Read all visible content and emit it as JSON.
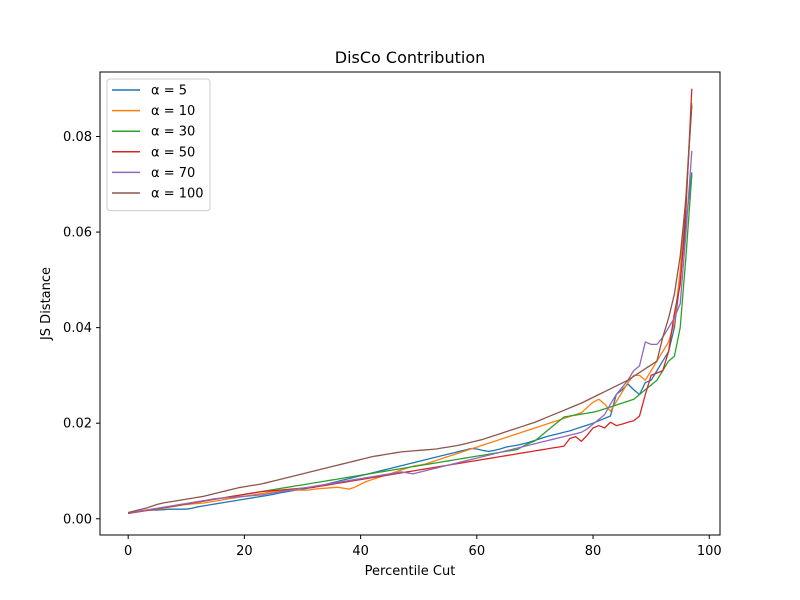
{
  "chart_data": {
    "type": "line",
    "title": "DisCo Contribution",
    "xlabel": "Percentile Cut",
    "ylabel": "JS Distance",
    "xlim": [
      -4.85,
      101.85
    ],
    "ylim": [
      -0.0034,
      0.0935
    ],
    "xticks": [
      0,
      20,
      40,
      60,
      80,
      100
    ],
    "xtick_labels": [
      "0",
      "20",
      "40",
      "60",
      "80",
      "100"
    ],
    "yticks": [
      0.0,
      0.02,
      0.04,
      0.06,
      0.08
    ],
    "ytick_labels": [
      "0.00",
      "0.02",
      "0.04",
      "0.06",
      "0.08"
    ],
    "grid": false,
    "legend_position": "upper-left",
    "x_start": 0,
    "x_step": 1,
    "series": [
      {
        "name": "α = 5",
        "color": "#1f77b4",
        "values": [
          0.0012,
          0.0014,
          0.0016,
          0.0017,
          0.0018,
          0.0018,
          0.0019,
          0.002,
          0.002,
          0.002,
          0.002,
          0.0022,
          0.0025,
          0.0027,
          0.0029,
          0.0031,
          0.0033,
          0.0035,
          0.0037,
          0.0039,
          0.0041,
          0.0043,
          0.0045,
          0.0047,
          0.0049,
          0.0051,
          0.0054,
          0.0056,
          0.0058,
          0.006,
          0.0062,
          0.0064,
          0.0066,
          0.0069,
          0.0072,
          0.0075,
          0.0078,
          0.0081,
          0.0084,
          0.0087,
          0.009,
          0.0093,
          0.0096,
          0.0099,
          0.0102,
          0.0105,
          0.0108,
          0.0111,
          0.0114,
          0.0117,
          0.012,
          0.0123,
          0.0126,
          0.0129,
          0.0132,
          0.0135,
          0.0138,
          0.0141,
          0.0144,
          0.0147,
          0.0146,
          0.0143,
          0.0141,
          0.0143,
          0.0146,
          0.015,
          0.0152,
          0.0154,
          0.0157,
          0.016,
          0.0164,
          0.0168,
          0.0172,
          0.0175,
          0.0178,
          0.0181,
          0.0184,
          0.0188,
          0.0192,
          0.0196,
          0.02,
          0.0205,
          0.021,
          0.0215,
          0.026,
          0.027,
          0.0282,
          0.027,
          0.026,
          0.0285,
          0.029,
          0.031,
          0.033,
          0.035,
          0.04,
          0.05,
          0.062,
          0.0725
        ]
      },
      {
        "name": "α = 10",
        "color": "#ff7f0e",
        "values": [
          0.0011,
          0.0013,
          0.0015,
          0.0017,
          0.0018,
          0.002,
          0.0022,
          0.0024,
          0.0026,
          0.0028,
          0.003,
          0.0031,
          0.0032,
          0.0033,
          0.0035,
          0.0037,
          0.0039,
          0.0041,
          0.0043,
          0.0045,
          0.0047,
          0.0049,
          0.0051,
          0.0053,
          0.0055,
          0.0057,
          0.0058,
          0.0059,
          0.006,
          0.006,
          0.006,
          0.006,
          0.0062,
          0.0063,
          0.0064,
          0.0065,
          0.0066,
          0.0064,
          0.0062,
          0.0066,
          0.0072,
          0.0078,
          0.0082,
          0.0086,
          0.009,
          0.0094,
          0.0098,
          0.0102,
          0.0106,
          0.011,
          0.0112,
          0.0114,
          0.0118,
          0.0122,
          0.0126,
          0.013,
          0.0134,
          0.0138,
          0.0142,
          0.0146,
          0.015,
          0.0154,
          0.0158,
          0.0162,
          0.0166,
          0.017,
          0.0174,
          0.0178,
          0.0182,
          0.0186,
          0.019,
          0.0194,
          0.0198,
          0.0202,
          0.0206,
          0.021,
          0.0214,
          0.0218,
          0.0222,
          0.0233,
          0.0244,
          0.025,
          0.024,
          0.0225,
          0.0245,
          0.0265,
          0.0285,
          0.03,
          0.03,
          0.029,
          0.031,
          0.033,
          0.035,
          0.037,
          0.041,
          0.052,
          0.068,
          0.087
        ]
      },
      {
        "name": "α = 30",
        "color": "#2ca02c",
        "values": [
          0.0012,
          0.0014,
          0.0016,
          0.0018,
          0.0019,
          0.0021,
          0.0023,
          0.0025,
          0.0027,
          0.0029,
          0.0031,
          0.0033,
          0.0035,
          0.0037,
          0.0039,
          0.0041,
          0.0043,
          0.0045,
          0.0047,
          0.0049,
          0.0051,
          0.0053,
          0.0055,
          0.0057,
          0.0059,
          0.0061,
          0.0063,
          0.0065,
          0.0067,
          0.0069,
          0.0071,
          0.0073,
          0.0075,
          0.0077,
          0.0079,
          0.0081,
          0.0083,
          0.0085,
          0.0087,
          0.0089,
          0.0091,
          0.0093,
          0.0095,
          0.0097,
          0.0099,
          0.0101,
          0.0103,
          0.0105,
          0.0107,
          0.0109,
          0.0111,
          0.0113,
          0.0115,
          0.0117,
          0.0119,
          0.0121,
          0.0123,
          0.0125,
          0.0127,
          0.0129,
          0.0131,
          0.0133,
          0.0135,
          0.0137,
          0.0139,
          0.0141,
          0.0143,
          0.0145,
          0.0152,
          0.0158,
          0.0163,
          0.0173,
          0.0183,
          0.0193,
          0.0203,
          0.0213,
          0.0215,
          0.0217,
          0.0219,
          0.0221,
          0.0223,
          0.0226,
          0.023,
          0.0234,
          0.0238,
          0.0242,
          0.0246,
          0.025,
          0.026,
          0.027,
          0.028,
          0.029,
          0.031,
          0.033,
          0.034,
          0.04,
          0.055,
          0.072
        ]
      },
      {
        "name": "α = 50",
        "color": "#d62728",
        "values": [
          0.0011,
          0.0013,
          0.0015,
          0.0017,
          0.0019,
          0.0021,
          0.0023,
          0.0025,
          0.0027,
          0.0029,
          0.0031,
          0.0033,
          0.0035,
          0.0037,
          0.0039,
          0.0041,
          0.0043,
          0.0045,
          0.0047,
          0.0049,
          0.0051,
          0.0053,
          0.0055,
          0.0057,
          0.0058,
          0.0059,
          0.006,
          0.0061,
          0.0062,
          0.0063,
          0.0064,
          0.0065,
          0.0066,
          0.0068,
          0.007,
          0.0072,
          0.0074,
          0.0076,
          0.0078,
          0.008,
          0.0082,
          0.0084,
          0.0086,
          0.0088,
          0.009,
          0.0092,
          0.0094,
          0.0096,
          0.0098,
          0.01,
          0.0102,
          0.0104,
          0.0106,
          0.0108,
          0.011,
          0.0112,
          0.0114,
          0.0116,
          0.0118,
          0.012,
          0.0122,
          0.0124,
          0.0126,
          0.0128,
          0.013,
          0.0132,
          0.0134,
          0.0136,
          0.0138,
          0.014,
          0.0142,
          0.0144,
          0.0146,
          0.0148,
          0.015,
          0.0152,
          0.0168,
          0.0172,
          0.0162,
          0.0175,
          0.019,
          0.0195,
          0.019,
          0.0202,
          0.0195,
          0.0198,
          0.0202,
          0.0205,
          0.0215,
          0.026,
          0.03,
          0.0305,
          0.031,
          0.035,
          0.043,
          0.049,
          0.065,
          0.09
        ]
      },
      {
        "name": "α = 70",
        "color": "#9467bd",
        "values": [
          0.0012,
          0.0014,
          0.0016,
          0.0018,
          0.002,
          0.0022,
          0.0024,
          0.0026,
          0.0028,
          0.003,
          0.0032,
          0.0034,
          0.0036,
          0.0038,
          0.004,
          0.0042,
          0.0043,
          0.0044,
          0.0045,
          0.0046,
          0.0047,
          0.0048,
          0.0049,
          0.005,
          0.0052,
          0.0054,
          0.0056,
          0.0058,
          0.006,
          0.0062,
          0.0064,
          0.0066,
          0.0068,
          0.007,
          0.0072,
          0.0074,
          0.0076,
          0.0078,
          0.008,
          0.0082,
          0.0084,
          0.0086,
          0.0088,
          0.009,
          0.0092,
          0.0094,
          0.0096,
          0.0098,
          0.0096,
          0.0094,
          0.0097,
          0.01,
          0.0103,
          0.0106,
          0.0109,
          0.0112,
          0.0115,
          0.0118,
          0.0121,
          0.0124,
          0.0127,
          0.013,
          0.0133,
          0.0136,
          0.0139,
          0.0142,
          0.0145,
          0.0148,
          0.0151,
          0.0154,
          0.0157,
          0.016,
          0.0163,
          0.0166,
          0.0169,
          0.0172,
          0.0175,
          0.0178,
          0.0181,
          0.0188,
          0.0198,
          0.0208,
          0.0218,
          0.024,
          0.026,
          0.0275,
          0.029,
          0.031,
          0.032,
          0.037,
          0.0365,
          0.0365,
          0.038,
          0.04,
          0.042,
          0.045,
          0.06,
          0.077
        ]
      },
      {
        "name": "α = 100",
        "color": "#8c564b",
        "values": [
          0.0013,
          0.0016,
          0.0019,
          0.0022,
          0.0026,
          0.003,
          0.0033,
          0.0035,
          0.0037,
          0.0039,
          0.0041,
          0.0043,
          0.0045,
          0.0047,
          0.005,
          0.0053,
          0.0056,
          0.0059,
          0.0062,
          0.0065,
          0.0067,
          0.0069,
          0.0071,
          0.0073,
          0.0076,
          0.0079,
          0.0082,
          0.0085,
          0.0088,
          0.0091,
          0.0094,
          0.0097,
          0.01,
          0.0103,
          0.0106,
          0.0109,
          0.0112,
          0.0115,
          0.0118,
          0.0121,
          0.0124,
          0.0127,
          0.013,
          0.0132,
          0.0134,
          0.0136,
          0.0138,
          0.014,
          0.0141,
          0.0142,
          0.0143,
          0.0144,
          0.0145,
          0.0146,
          0.0148,
          0.015,
          0.0152,
          0.0154,
          0.0157,
          0.016,
          0.0163,
          0.0166,
          0.017,
          0.0174,
          0.0178,
          0.0182,
          0.0186,
          0.019,
          0.0194,
          0.0198,
          0.0202,
          0.0207,
          0.0212,
          0.0217,
          0.0222,
          0.0227,
          0.0232,
          0.0237,
          0.0242,
          0.0248,
          0.0254,
          0.026,
          0.0266,
          0.0272,
          0.0278,
          0.0284,
          0.029,
          0.0298,
          0.0306,
          0.0314,
          0.0322,
          0.033,
          0.038,
          0.042,
          0.047,
          0.055,
          0.067,
          0.0865
        ]
      }
    ]
  }
}
